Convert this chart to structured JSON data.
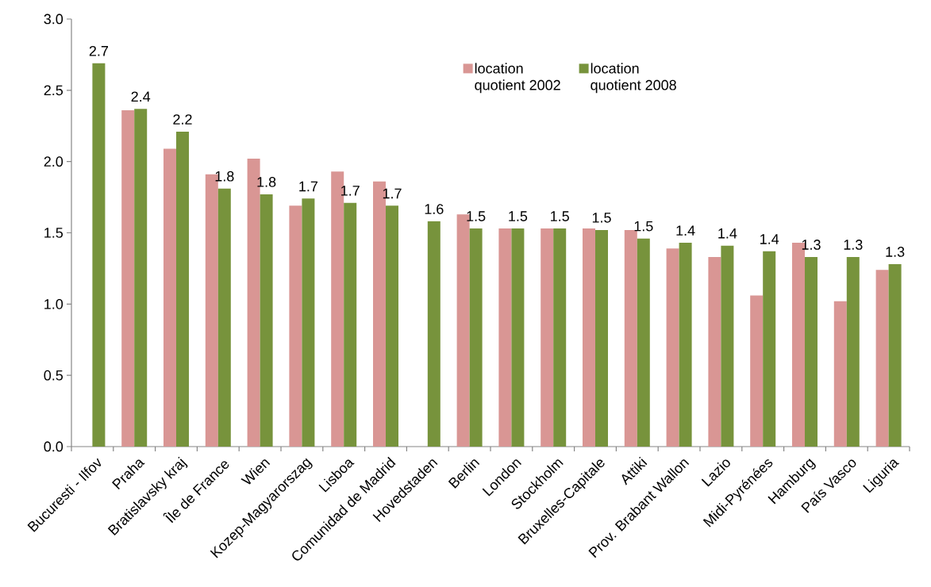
{
  "chart_data": {
    "type": "bar",
    "categories": [
      "Bucuresti - Ilfov",
      "Praha",
      "Bratislavsky kraj",
      "Île de France",
      "Wien",
      "Kozep-Magyarorszag",
      "Lisboa",
      "Comunidad de Madrid",
      "Hovedstaden",
      "Berlin",
      "London",
      "Stockholm",
      "Bruxelles-Capitale",
      "Attiki",
      "Prov. Brabant Wallon",
      "Lazio",
      "Midi-Pyrénées",
      "Hamburg",
      "País Vasco",
      "Liguria"
    ],
    "series": [
      {
        "name": "location quotient 2002",
        "color": "#d99694",
        "values": [
          null,
          2.36,
          2.09,
          1.91,
          2.02,
          1.69,
          1.93,
          1.86,
          null,
          1.63,
          1.53,
          1.53,
          1.53,
          1.52,
          1.39,
          1.33,
          1.06,
          1.43,
          1.02,
          1.24
        ]
      },
      {
        "name": "location quotient 2008",
        "color": "#77933c",
        "values": [
          2.69,
          2.37,
          2.21,
          1.81,
          1.77,
          1.74,
          1.71,
          1.69,
          1.58,
          1.53,
          1.53,
          1.53,
          1.52,
          1.46,
          1.43,
          1.41,
          1.37,
          1.33,
          1.33,
          1.28
        ],
        "value_labels": [
          "2.7",
          "2.4",
          "2.2",
          "1.8",
          "1.8",
          "1.7",
          "1.7",
          "1.7",
          "1.6",
          "1.5",
          "1.5",
          "1.5",
          "1.5",
          "1.5",
          "1.4",
          "1.4",
          "1.4",
          "1.3",
          "1.3",
          "1.3"
        ]
      }
    ],
    "ylim": [
      0,
      3
    ],
    "yticks": [
      {
        "value": 0,
        "label": "0.0"
      },
      0.5,
      {
        "value": 1,
        "label": "1.0"
      },
      1.5,
      {
        "value": 2,
        "label": "2.0"
      },
      2.5,
      {
        "value": 3,
        "label": "3.0"
      }
    ],
    "legend": "top"
  }
}
